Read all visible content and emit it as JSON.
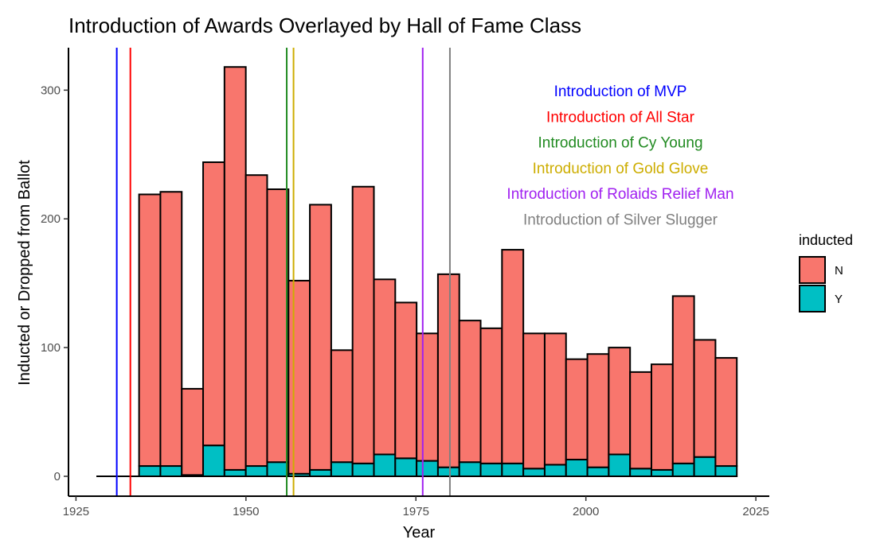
{
  "chart_data": {
    "type": "bar",
    "stacked": true,
    "title": "Introduction of Awards Overlayed by Hall of Fame Class",
    "xlabel": "Year",
    "ylabel": "Inducted or Dropped from Ballot",
    "xlim": [
      1925,
      2025
    ],
    "ylim": [
      0,
      320
    ],
    "x_ticks": [
      1925,
      1950,
      1975,
      2000,
      2025
    ],
    "y_ticks": [
      0,
      100,
      200,
      300
    ],
    "grid": false,
    "bin_width": 3.14,
    "x_bin_starts": [
      1928.0,
      1931.14,
      1934.28,
      1937.42,
      1940.56,
      1943.7,
      1946.84,
      1949.98,
      1953.12,
      1956.26,
      1959.4,
      1962.54,
      1965.68,
      1968.82,
      1971.96,
      1975.1,
      1978.24,
      1981.38,
      1984.52,
      1987.66,
      1990.8,
      1993.94,
      1997.08,
      2000.22,
      2003.36,
      2006.5,
      2009.64,
      2012.78,
      2015.92,
      2019.06
    ],
    "series": [
      {
        "name": "N",
        "color": "#F8766D",
        "values": [
          0,
          0,
          211,
          213,
          67,
          220,
          313,
          226,
          212,
          150,
          206,
          87,
          215,
          136,
          121,
          99,
          150,
          110,
          105,
          166,
          105,
          102,
          78,
          88,
          83,
          75,
          82,
          130,
          91,
          84
        ]
      },
      {
        "name": "Y",
        "color": "#00BFC4",
        "values": [
          0,
          0,
          8,
          8,
          1,
          24,
          5,
          8,
          11,
          2,
          5,
          11,
          10,
          17,
          14,
          12,
          7,
          11,
          10,
          10,
          6,
          9,
          13,
          7,
          17,
          6,
          5,
          10,
          15,
          8
        ]
      }
    ],
    "vlines": [
      {
        "x": 1931,
        "color": "#0000FF"
      },
      {
        "x": 1933,
        "color": "#FF0000"
      },
      {
        "x": 1956,
        "color": "#228B22"
      },
      {
        "x": 1957,
        "color": "#CDAD00"
      },
      {
        "x": 1976,
        "color": "#A020F0"
      },
      {
        "x": 1980,
        "color": "#808080"
      }
    ],
    "annotations": [
      {
        "text": "Introduction of MVP",
        "color": "#0000FF"
      },
      {
        "text": "Introduction of All Star",
        "color": "#FF0000"
      },
      {
        "text": "Introduction of Cy Young",
        "color": "#228B22"
      },
      {
        "text": "Introduction of Gold Glove",
        "color": "#CDAD00"
      },
      {
        "text": "Introduction of Rolaids Relief Man",
        "color": "#A020F0"
      },
      {
        "text": "Introduction of Silver Slugger",
        "color": "#808080"
      }
    ],
    "legend": {
      "title": "inducted",
      "placement": "right",
      "entries": [
        {
          "label": "N",
          "color": "#F8766D"
        },
        {
          "label": "Y",
          "color": "#00BFC4"
        }
      ]
    }
  }
}
